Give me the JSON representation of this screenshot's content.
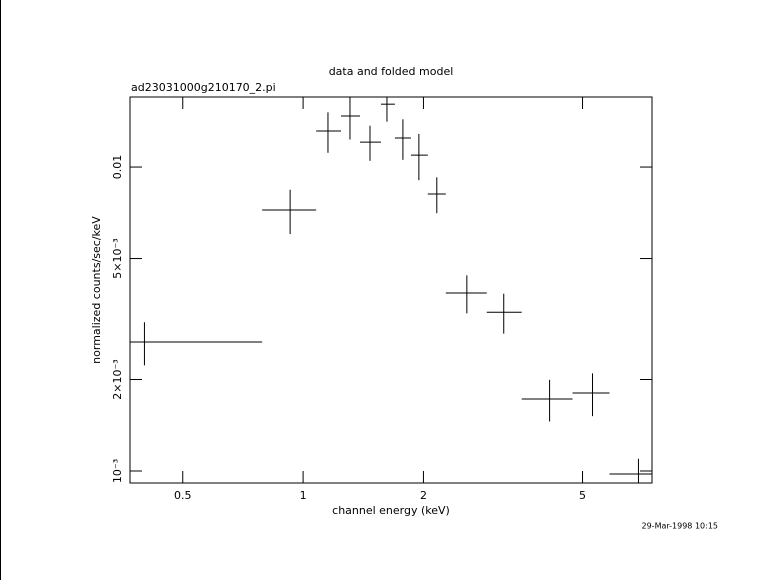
{
  "chart_data": {
    "type": "errorbar",
    "title": "data and folded model",
    "subtitle": "ad23031000g210170_2.pi",
    "x_label": "channel energy (keV)",
    "y_label": "normalized counts/sec/keV",
    "timestamp": "29-Mar-1998 10:15",
    "log_x": true,
    "log_y": true,
    "color": "#000000",
    "xlim": [
      0.369,
      7.46
    ],
    "ylim": [
      0.000913,
      0.017
    ],
    "xticks": [
      0.5,
      1,
      2,
      5
    ],
    "yticks": [
      {
        "value": 0.01,
        "label": "0.01"
      },
      {
        "value": 0.005,
        "label": "5×10⁻³"
      },
      {
        "value": 0.002,
        "label": "2×10⁻³"
      },
      {
        "value": 0.001,
        "label": "10⁻³"
      }
    ],
    "x": [
      0.401,
      0.928,
      1.154,
      1.31,
      1.47,
      1.621,
      1.777,
      1.948,
      2.16,
      2.568,
      3.176,
      4.136,
      5.296,
      6.9
    ],
    "x_low": [
      0.369,
      0.79,
      1.078,
      1.244,
      1.388,
      1.566,
      1.697,
      1.861,
      2.051,
      2.275,
      2.88,
      3.522,
      4.72,
      5.84
    ],
    "x_high": [
      0.79,
      1.078,
      1.244,
      1.388,
      1.566,
      1.697,
      1.861,
      2.051,
      2.275,
      2.88,
      3.522,
      4.72,
      5.84,
      8.0
    ],
    "values": [
      0.002656,
      0.00722,
      0.01314,
      0.01472,
      0.01208,
      0.0161,
      0.01246,
      0.01095,
      0.00815,
      0.00385,
      0.00333,
      0.001725,
      0.001805,
      0.000977
    ],
    "y_err": [
      0.00043,
      0.0012,
      0.002,
      0.0024,
      0.0016,
      0.002,
      0.0019,
      0.0019,
      0.0011,
      0.00055,
      0.0005,
      0.00027,
      0.00029,
      0.00012
    ]
  }
}
